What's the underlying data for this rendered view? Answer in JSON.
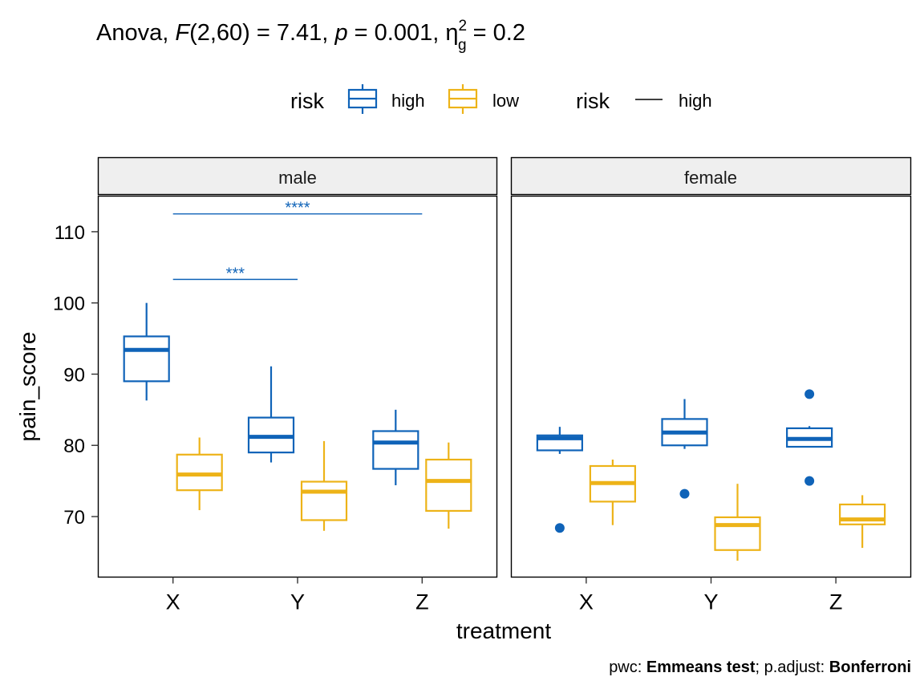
{
  "title": {
    "prefix": "Anova, ",
    "f_label": "F",
    "f_args": "(2,60) = 7.41, ",
    "p_label": "p",
    "p_rest": " = 0.001, ",
    "eta_label": "η",
    "eta_sup": "2",
    "eta_sub": "g",
    "eta_rest": " = 0.2"
  },
  "legend": {
    "title1": "risk",
    "fill_high": "high",
    "fill_low": "low",
    "title2": "risk",
    "line_high": "high"
  },
  "caption": {
    "pre": "pwc: ",
    "test": "Emmeans test",
    "mid": "; p.adjust: ",
    "adjust": "Bonferroni"
  },
  "colors": {
    "high": "#0F63B8",
    "low": "#EDB318",
    "strip_bg": "#EFEFEF"
  },
  "chart_data": {
    "type": "boxplot",
    "xlabel": "treatment",
    "ylabel": "pain_score",
    "ylim": [
      61.5,
      115
    ],
    "yticks": [
      70,
      80,
      90,
      100,
      110
    ],
    "categories": [
      "X",
      "Y",
      "Z"
    ],
    "groups": [
      "high",
      "low"
    ],
    "panels": [
      {
        "name": "male",
        "boxes": [
          {
            "treatment": "X",
            "risk": "high",
            "min": 86.3,
            "q1": 89.0,
            "median": 93.4,
            "q3": 95.3,
            "max": 100.0,
            "outliers": []
          },
          {
            "treatment": "X",
            "risk": "low",
            "min": 70.9,
            "q1": 73.7,
            "median": 75.9,
            "q3": 78.7,
            "max": 81.1,
            "outliers": []
          },
          {
            "treatment": "Y",
            "risk": "high",
            "min": 77.6,
            "q1": 79.0,
            "median": 81.2,
            "q3": 83.9,
            "max": 91.1,
            "outliers": []
          },
          {
            "treatment": "Y",
            "risk": "low",
            "min": 68.0,
            "q1": 69.5,
            "median": 73.5,
            "q3": 74.9,
            "max": 80.6,
            "outliers": []
          },
          {
            "treatment": "Z",
            "risk": "high",
            "min": 74.4,
            "q1": 76.7,
            "median": 80.4,
            "q3": 82.0,
            "max": 85.0,
            "outliers": []
          },
          {
            "treatment": "Z",
            "risk": "low",
            "min": 68.3,
            "q1": 70.8,
            "median": 75.0,
            "q3": 78.0,
            "max": 80.4,
            "outliers": []
          }
        ],
        "brackets": [
          {
            "from": "X",
            "to": "Y",
            "y": 103.3,
            "label": "***"
          },
          {
            "from": "X",
            "to": "Z",
            "y": 112.5,
            "label": "****"
          }
        ]
      },
      {
        "name": "female",
        "boxes": [
          {
            "treatment": "X",
            "risk": "high",
            "min": 78.8,
            "q1": 79.3,
            "median": 81.0,
            "q3": 81.4,
            "max": 82.6,
            "outliers": [
              68.4
            ]
          },
          {
            "treatment": "X",
            "risk": "low",
            "min": 68.8,
            "q1": 72.1,
            "median": 74.7,
            "q3": 77.1,
            "max": 78.0,
            "outliers": []
          },
          {
            "treatment": "Y",
            "risk": "high",
            "min": 79.5,
            "q1": 80.0,
            "median": 81.8,
            "q3": 83.7,
            "max": 86.5,
            "outliers": [
              73.2
            ]
          },
          {
            "treatment": "Y",
            "risk": "low",
            "min": 63.8,
            "q1": 65.3,
            "median": 68.8,
            "q3": 69.9,
            "max": 74.6,
            "outliers": []
          },
          {
            "treatment": "Z",
            "risk": "high",
            "min": 79.8,
            "q1": 79.8,
            "median": 80.9,
            "q3": 82.4,
            "max": 82.7,
            "outliers": [
              87.2,
              75.0
            ]
          },
          {
            "treatment": "Z",
            "risk": "low",
            "min": 65.6,
            "q1": 68.9,
            "median": 69.6,
            "q3": 71.7,
            "max": 73.0,
            "outliers": []
          }
        ],
        "brackets": []
      }
    ]
  }
}
